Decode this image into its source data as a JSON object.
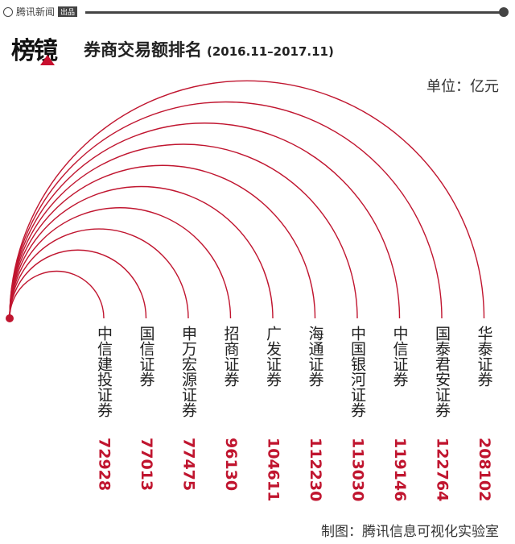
{
  "header": {
    "source_logo": "腾讯新闻",
    "source_tag": "出品"
  },
  "brand": {
    "text": "榜镜"
  },
  "chart_data": {
    "type": "arc-bar",
    "title": "券商交易额排名",
    "subtitle": "(2016.11–2017.11)",
    "unit": "单位：亿元",
    "categories": [
      "中信建投证券",
      "国信证券",
      "申万宏源证券",
      "招商证券",
      "广发证券",
      "海通证券",
      "中国银河证券",
      "中信证券",
      "国泰君安证券",
      "华泰证券"
    ],
    "values": [
      72928,
      77013,
      77475,
      96130,
      104611,
      112230,
      113030,
      119146,
      122764,
      208102
    ],
    "colors": {
      "arc": "#c0152f",
      "value_text": "#c0152f",
      "category_text": "#222222"
    }
  },
  "footer": {
    "credit": "制图：腾讯信息可视化实验室"
  }
}
